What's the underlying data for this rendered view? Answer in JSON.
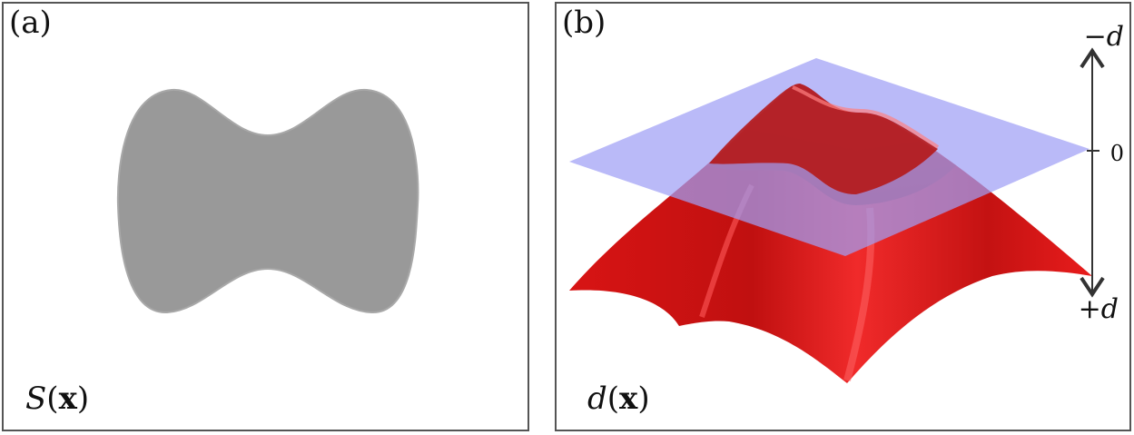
{
  "panel_a": {
    "label": "(a)",
    "caption_symbol": "S",
    "caption_arg": "x",
    "shape_color": "#999999"
  },
  "panel_b": {
    "label": "(b)",
    "caption_symbol": "d",
    "caption_arg": "x",
    "surface_color": "#e02020",
    "plane_color": "#9fa0f5",
    "axis": {
      "top_label": "−d",
      "zero_label": "0",
      "bottom_label": "+d"
    }
  }
}
